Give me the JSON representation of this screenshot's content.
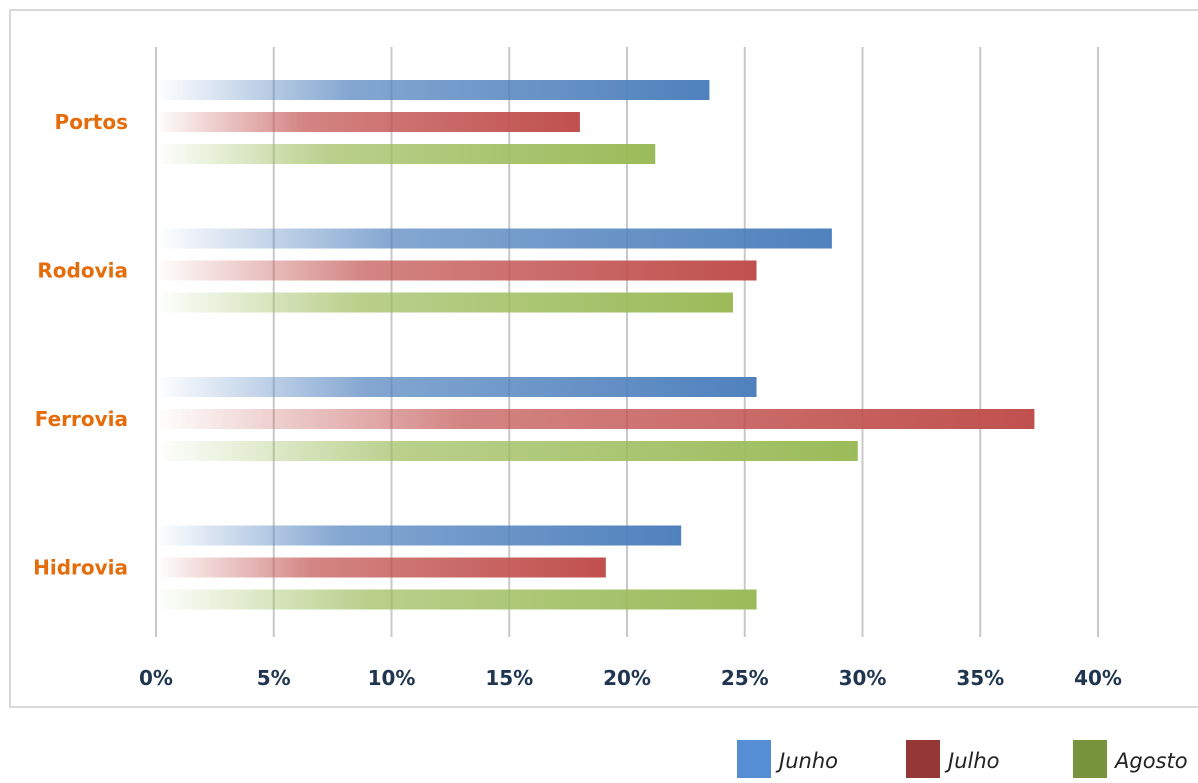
{
  "chart_data": {
    "type": "bar",
    "orientation": "horizontal",
    "categories": [
      "Portos",
      "Rodovia",
      "Ferrovia",
      "Hidrovia"
    ],
    "series": [
      {
        "name": "Junho",
        "color": "#4F81BD",
        "values": [
          23.5,
          28.7,
          25.5,
          22.3
        ]
      },
      {
        "name": "Julho",
        "color": "#C0504D",
        "values": [
          18.0,
          25.5,
          37.3,
          19.1
        ]
      },
      {
        "name": "Agosto",
        "color": "#9BBB59",
        "values": [
          21.2,
          24.5,
          29.8,
          25.5
        ]
      }
    ],
    "xlim": [
      0,
      40
    ],
    "x_ticks": [
      "0%",
      "5%",
      "10%",
      "15%",
      "20%",
      "25%",
      "30%",
      "35%",
      "40%"
    ],
    "grid": "vertical",
    "legend_position": "bottom-right",
    "legend_colors": [
      "#558ED5",
      "#953735",
      "#77933C"
    ],
    "category_label_color": "#E46C0A",
    "tick_label_color": "#1F3550",
    "bar_style": "gradient fade from left"
  }
}
